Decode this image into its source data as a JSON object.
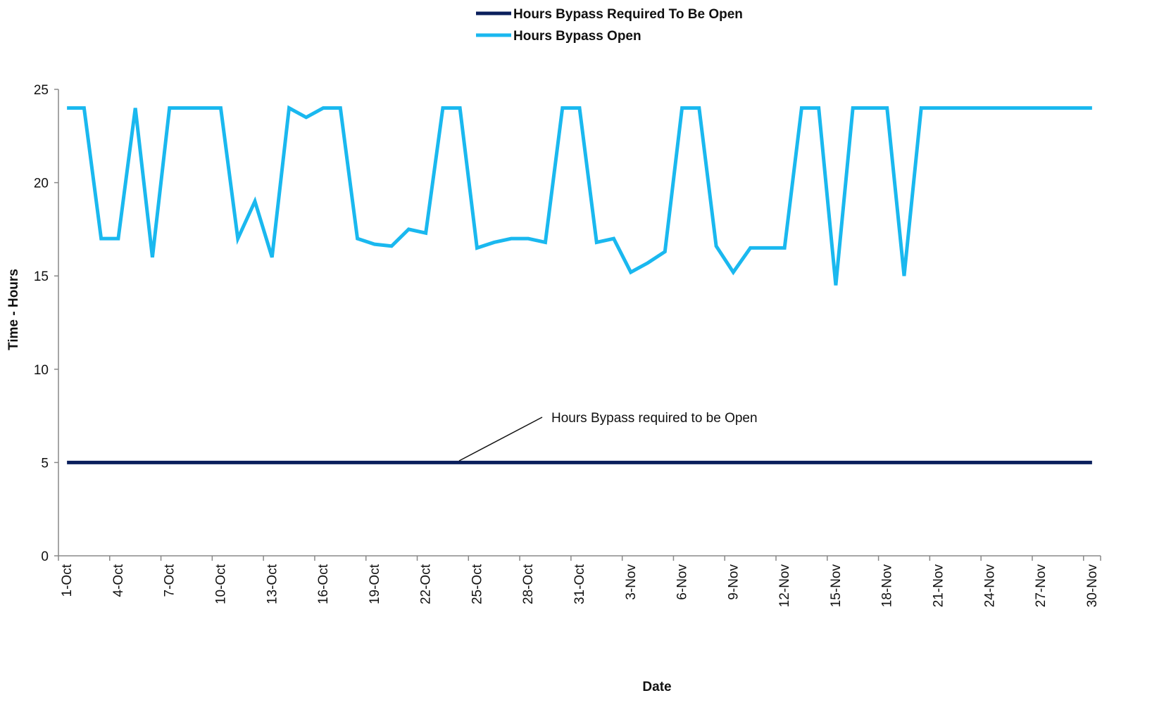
{
  "chart_data": {
    "type": "line",
    "x_label": "Date",
    "y_label": "Time - Hours",
    "annotation": "Hours Bypass required to be Open",
    "categories": [
      "1-Oct",
      null,
      null,
      "4-Oct",
      null,
      null,
      "7-Oct",
      null,
      null,
      "10-Oct",
      null,
      null,
      "13-Oct",
      null,
      null,
      "16-Oct",
      null,
      null,
      "19-Oct",
      null,
      null,
      "22-Oct",
      null,
      null,
      "25-Oct",
      null,
      null,
      "28-Oct",
      null,
      null,
      "31-Oct",
      null,
      null,
      "3-Nov",
      null,
      null,
      "6-Nov",
      null,
      null,
      "9-Nov",
      null,
      null,
      "12-Nov",
      null,
      null,
      "15-Nov",
      null,
      null,
      "18-Nov",
      null,
      null,
      "21-Nov",
      null,
      null,
      "24-Nov",
      null,
      null,
      "27-Nov",
      null,
      null,
      "30-Nov"
    ],
    "series": [
      {
        "name": "Hours Bypass Required To Be Open",
        "color": "#0a1f5c",
        "values": [
          5,
          5,
          5,
          5,
          5,
          5,
          5,
          5,
          5,
          5,
          5,
          5,
          5,
          5,
          5,
          5,
          5,
          5,
          5,
          5,
          5,
          5,
          5,
          5,
          5,
          5,
          5,
          5,
          5,
          5,
          5,
          5,
          5,
          5,
          5,
          5,
          5,
          5,
          5,
          5,
          5,
          5,
          5,
          5,
          5,
          5,
          5,
          5,
          5,
          5,
          5,
          5,
          5,
          5,
          5,
          5,
          5,
          5,
          5,
          5,
          5
        ]
      },
      {
        "name": "Hours Bypass Open",
        "color": "#1ab8ef",
        "values": [
          24,
          24,
          17,
          17,
          24,
          16,
          24,
          24,
          24,
          24,
          17,
          19,
          16,
          24,
          23.5,
          24,
          24,
          17,
          16.7,
          16.6,
          17.5,
          17.3,
          24,
          24,
          16.5,
          16.8,
          17,
          17,
          16.8,
          24,
          24,
          16.8,
          17,
          15.2,
          15.7,
          16.3,
          24,
          24,
          16.6,
          15.2,
          16.5,
          16.5,
          16.5,
          24,
          24,
          14.5,
          24,
          24,
          24,
          15,
          24,
          24,
          24,
          24,
          24,
          24,
          24,
          24,
          24,
          24,
          24
        ]
      }
    ],
    "ylim": [
      0,
      25
    ],
    "yticks": [
      0,
      5,
      10,
      15,
      20,
      25
    ]
  }
}
